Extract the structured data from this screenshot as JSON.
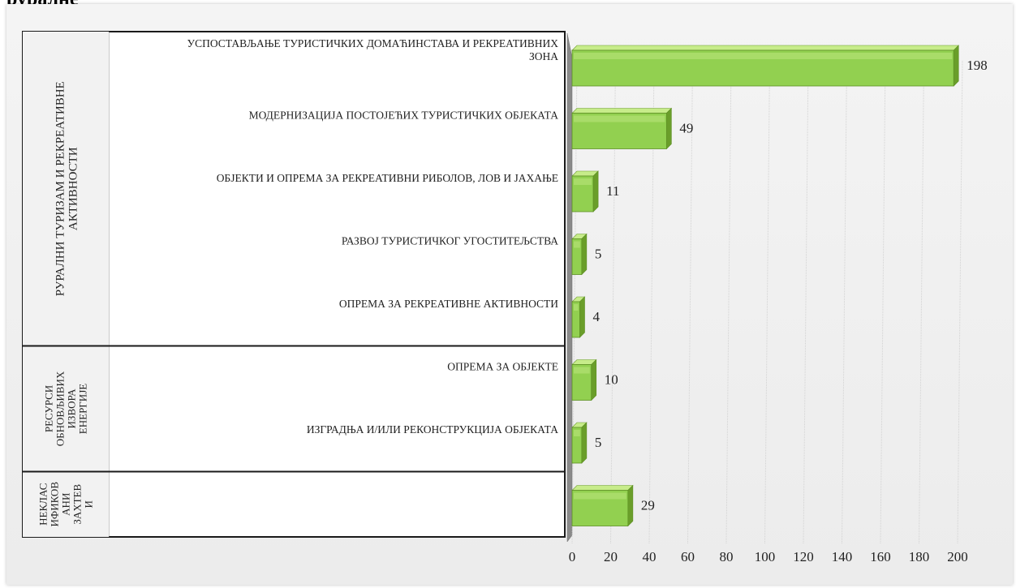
{
  "header": {
    "title": "руралне"
  },
  "chart_data": {
    "type": "bar",
    "orientation": "horizontal",
    "style": "3d",
    "bar_color": "#92d050",
    "xlim": [
      0,
      200
    ],
    "x_ticks": [
      "0",
      "20",
      "40",
      "60",
      "80",
      "100",
      "120",
      "140",
      "160",
      "180",
      "200"
    ],
    "groups": [
      {
        "label": "РУРАЛНИ ТУРИЗАМ И РЕКРЕАТИВНЕ АКТИВНОСТИ",
        "label_lines": [
          "РУРАЛНИ ТУРИЗАМ И РЕКРЕАТИВНЕ",
          "АКТИВНОСТИ"
        ],
        "items": [
          {
            "label": "УСПОСТАВЉАЊЕ ТУРИСТИЧКИХ ДОМАЋИНСТАВА И РЕКРЕАТИВНИХ ЗОНА",
            "lines": [
              "УСПОСТАВЉАЊЕ ТУРИСТИЧКИХ ДОМАЋИНСТАВА И РЕКРЕАТИВНИХ",
              "ЗОНА"
            ],
            "value": 198
          },
          {
            "label": "МОДЕРНИЗАЦИЈА ПОСТОЈЕЋИХ ТУРИСТИЧКИХ ОБЈЕКАТА",
            "lines": [
              "МОДЕРНИЗАЦИЈА ПОСТОЈЕЋИХ ТУРИСТИЧКИХ ОБЈЕКАТА"
            ],
            "value": 49
          },
          {
            "label": "ОБЈЕКТИ И ОПРЕМА ЗА РЕКРЕАТИВНИ РИБОЛОВ, ЛОВ И ЈАХАЊЕ",
            "lines": [
              "ОБЈЕКТИ И ОПРЕМА ЗА РЕКРЕАТИВНИ РИБОЛОВ, ЛОВ И ЈАХАЊЕ"
            ],
            "value": 11
          },
          {
            "label": "РАЗВОЈ ТУРИСТИЧКОГ УГОСТИТЕЉСТВА",
            "lines": [
              "РАЗВОЈ ТУРИСТИЧКОГ УГОСТИТЕЉСТВА"
            ],
            "value": 5
          },
          {
            "label": "ОПРЕМА ЗА РЕКРЕАТИВНЕ АКТИВНОСТИ",
            "lines": [
              "ОПРЕМА ЗА РЕКРЕАТИВНЕ АКТИВНОСТИ"
            ],
            "value": 4
          }
        ]
      },
      {
        "label": "РЕСУРСИ ОБНОВЉИВИХ ИЗВОРА ЕНЕРГИЈЕ",
        "label_lines": [
          "РЕСУРСИ",
          "ОБНОВЉИВИХ",
          "ИЗВОРА",
          "ЕНЕРГИЈЕ"
        ],
        "items": [
          {
            "label": "ОПРЕМА ЗА ОБЈЕКТЕ",
            "lines": [
              "ОПРЕМА ЗА ОБЈЕКТЕ"
            ],
            "value": 10
          },
          {
            "label": "ИЗГРАДЊА И/ИЛИ РЕКОНСТРУКЦИЈА ОБЈЕКАТА",
            "lines": [
              "ИЗГРАДЊА И/ИЛИ РЕКОНСТРУКЦИЈА ОБЈЕКАТА"
            ],
            "value": 5
          }
        ]
      },
      {
        "label": "НЕКЛАСИФИКОВАНИ ЗАХТЕВИ",
        "label_lines": [
          "НЕКЛАС",
          "ИФИКОВ",
          "АНИ",
          "ЗАХТЕВ",
          "И"
        ],
        "items": [
          {
            "label": "",
            "lines": [],
            "value": 29
          }
        ]
      }
    ]
  }
}
